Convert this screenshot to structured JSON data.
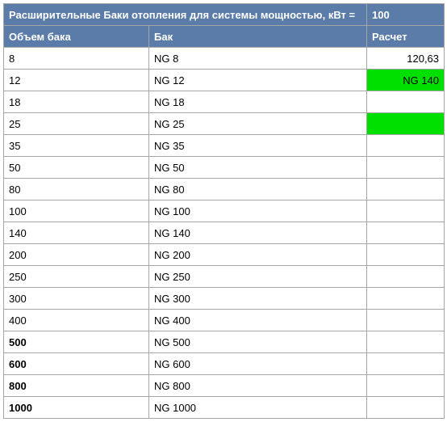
{
  "header": {
    "title": "Расширительные Баки отопления для системы мощностью, кВт =",
    "kw_value": "100",
    "col_volume": "Объем бака",
    "col_tank": "Бак",
    "col_calc": "Расчет"
  },
  "colors": {
    "header_bg": "#5b7ca8",
    "header_text": "#ffffff",
    "border": "#a6a6a6",
    "highlight_green": "#00e000",
    "background": "#ffffff"
  },
  "rows": [
    {
      "volume": "8",
      "tank": "NG 8",
      "calc": "120,63",
      "bold": false,
      "calc_hl": false
    },
    {
      "volume": "12",
      "tank": "NG 12",
      "calc": "NG 140",
      "bold": false,
      "calc_hl": true
    },
    {
      "volume": "18",
      "tank": "NG 18",
      "calc": "",
      "bold": false,
      "calc_hl": false
    },
    {
      "volume": "25",
      "tank": "NG 25",
      "calc": "",
      "bold": false,
      "calc_hl": true
    },
    {
      "volume": "35",
      "tank": "NG 35",
      "calc": "",
      "bold": false,
      "calc_hl": false
    },
    {
      "volume": "50",
      "tank": "NG 50",
      "calc": "",
      "bold": false,
      "calc_hl": false
    },
    {
      "volume": "80",
      "tank": "NG 80",
      "calc": "",
      "bold": false,
      "calc_hl": false
    },
    {
      "volume": "100",
      "tank": "NG 100",
      "calc": "",
      "bold": false,
      "calc_hl": false
    },
    {
      "volume": "140",
      "tank": "NG 140",
      "calc": "",
      "bold": false,
      "calc_hl": false
    },
    {
      "volume": "200",
      "tank": "NG 200",
      "calc": "",
      "bold": false,
      "calc_hl": false
    },
    {
      "volume": "250",
      "tank": "NG 250",
      "calc": "",
      "bold": false,
      "calc_hl": false
    },
    {
      "volume": "300",
      "tank": "NG 300",
      "calc": "",
      "bold": false,
      "calc_hl": false
    },
    {
      "volume": "400",
      "tank": "NG 400",
      "calc": "",
      "bold": false,
      "calc_hl": false
    },
    {
      "volume": "500",
      "tank": "NG 500",
      "calc": "",
      "bold": true,
      "calc_hl": false
    },
    {
      "volume": "600",
      "tank": "NG 600",
      "calc": "",
      "bold": true,
      "calc_hl": false
    },
    {
      "volume": "800",
      "tank": "NG 800",
      "calc": "",
      "bold": true,
      "calc_hl": false
    },
    {
      "volume": "1000",
      "tank": "NG 1000",
      "calc": "",
      "bold": true,
      "calc_hl": false
    }
  ]
}
